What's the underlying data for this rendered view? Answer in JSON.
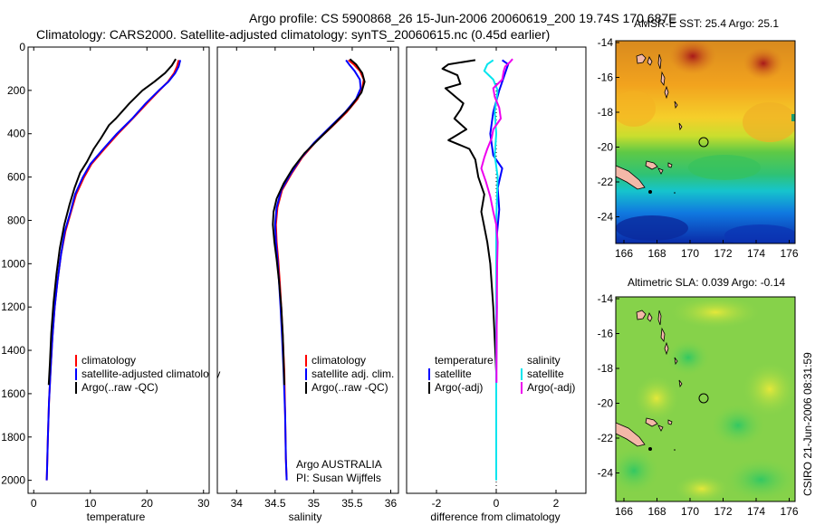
{
  "header": {
    "line1": "Argo profile: CS 5900868_26 15-Jun-2006 20060619_200 19.74S 170.687E",
    "line2": "Climatology: CARS2000. Satellite-adjusted climatology: synTS_20060615.nc (0.45d earlier)"
  },
  "colors": {
    "clim": "#ff0000",
    "sat": "#0000ff",
    "argo": "#000000",
    "sal_sat": "#00e5ee",
    "sal_argo": "#ee00ee"
  },
  "chart_data": [
    {
      "type": "line",
      "name": "temperature",
      "xlabel": "temperature",
      "xlim": [
        -1,
        31
      ],
      "ylim": [
        0,
        2060
      ],
      "xticks": [
        0,
        10,
        20,
        30
      ],
      "yticks": [
        0,
        200,
        400,
        600,
        800,
        1000,
        1200,
        1400,
        1600,
        1800,
        2000
      ],
      "legend": [
        "climatology",
        "satellite-adjusted climatology",
        "Argo(..raw -QC)"
      ],
      "series": [
        {
          "name": "climatology",
          "color": "clim",
          "points": [
            [
              25.6,
              60
            ],
            [
              25.3,
              90
            ],
            [
              24.8,
              120
            ],
            [
              23.7,
              160
            ],
            [
              22.2,
              200
            ],
            [
              20,
              260
            ],
            [
              17.5,
              330
            ],
            [
              14.9,
              400
            ],
            [
              12.5,
              470
            ],
            [
              10.2,
              540
            ],
            [
              8.9,
              600
            ],
            [
              7.5,
              680
            ],
            [
              6.6,
              760
            ],
            [
              5.6,
              850
            ],
            [
              4.8,
              960
            ],
            [
              4.2,
              1080
            ],
            [
              3.7,
              1200
            ],
            [
              3.3,
              1340
            ],
            [
              3,
              1480
            ],
            [
              2.7,
              1640
            ],
            [
              2.5,
              1800
            ],
            [
              2.35,
              1960
            ],
            [
              2.3,
              2000
            ]
          ]
        },
        {
          "name": "satellite-adjusted climatology",
          "color": "sat",
          "points": [
            [
              25.9,
              60
            ],
            [
              25.6,
              90
            ],
            [
              25,
              120
            ],
            [
              23.8,
              160
            ],
            [
              22.1,
              200
            ],
            [
              19.8,
              260
            ],
            [
              17.4,
              330
            ],
            [
              14.7,
              400
            ],
            [
              12.3,
              470
            ],
            [
              10,
              540
            ],
            [
              8.7,
              600
            ],
            [
              7.3,
              680
            ],
            [
              6.5,
              760
            ],
            [
              5.5,
              850
            ],
            [
              4.8,
              960
            ],
            [
              4.2,
              1080
            ],
            [
              3.7,
              1200
            ],
            [
              3.3,
              1340
            ],
            [
              3,
              1480
            ],
            [
              2.7,
              1640
            ],
            [
              2.5,
              1800
            ],
            [
              2.35,
              1960
            ],
            [
              2.3,
              2000
            ]
          ]
        },
        {
          "name": "Argo(..raw -QC)",
          "color": "argo",
          "points": [
            [
              25.1,
              55
            ],
            [
              24.4,
              85
            ],
            [
              23.2,
              120
            ],
            [
              21.3,
              160
            ],
            [
              19.2,
              200
            ],
            [
              16.9,
              260
            ],
            [
              14.5,
              330
            ],
            [
              13.3,
              360
            ],
            [
              11.9,
              420
            ],
            [
              10.6,
              470
            ],
            [
              9.4,
              530
            ],
            [
              8.2,
              580
            ],
            [
              7.2,
              650
            ],
            [
              6.3,
              730
            ],
            [
              5.4,
              820
            ],
            [
              4.6,
              930
            ],
            [
              4.0,
              1050
            ],
            [
              3.5,
              1180
            ],
            [
              3.1,
              1320
            ],
            [
              2.85,
              1460
            ],
            [
              2.65,
              1560
            ]
          ]
        }
      ]
    },
    {
      "type": "line",
      "name": "salinity",
      "xlabel": "salinity",
      "xlim": [
        33.75,
        36.1
      ],
      "ylim": [
        0,
        2060
      ],
      "xticks": [
        34,
        34.5,
        35,
        35.5,
        36
      ],
      "yticks": [],
      "legend": [
        "climatology",
        "satellite adj. clim.",
        "Argo(..raw -QC)"
      ],
      "series": [
        {
          "name": "climatology",
          "color": "clim",
          "points": [
            [
              35.45,
              60
            ],
            [
              35.52,
              80
            ],
            [
              35.6,
              110
            ],
            [
              35.65,
              150
            ],
            [
              35.63,
              190
            ],
            [
              35.57,
              240
            ],
            [
              35.43,
              300
            ],
            [
              35.23,
              370
            ],
            [
              35.02,
              440
            ],
            [
              34.85,
              510
            ],
            [
              34.72,
              580
            ],
            [
              34.59,
              660
            ],
            [
              34.53,
              740
            ],
            [
              34.51,
              820
            ],
            [
              34.52,
              900
            ],
            [
              34.54,
              980
            ],
            [
              34.56,
              1080
            ],
            [
              34.58,
              1200
            ],
            [
              34.6,
              1340
            ],
            [
              34.62,
              1500
            ],
            [
              34.63,
              1700
            ],
            [
              34.64,
              1900
            ],
            [
              34.65,
              2000
            ]
          ]
        },
        {
          "name": "satellite adj. clim.",
          "color": "sat",
          "points": [
            [
              35.42,
              60
            ],
            [
              35.46,
              80
            ],
            [
              35.53,
              110
            ],
            [
              35.6,
              150
            ],
            [
              35.61,
              190
            ],
            [
              35.55,
              240
            ],
            [
              35.41,
              300
            ],
            [
              35.21,
              370
            ],
            [
              35.01,
              440
            ],
            [
              34.84,
              510
            ],
            [
              34.71,
              580
            ],
            [
              34.58,
              660
            ],
            [
              34.52,
              740
            ],
            [
              34.5,
              820
            ],
            [
              34.51,
              900
            ],
            [
              34.53,
              980
            ],
            [
              34.55,
              1080
            ],
            [
              34.57,
              1200
            ],
            [
              34.59,
              1340
            ],
            [
              34.61,
              1500
            ],
            [
              34.63,
              1700
            ],
            [
              34.64,
              1900
            ],
            [
              34.65,
              2000
            ]
          ]
        },
        {
          "name": "Argo(..raw -QC)",
          "color": "argo",
          "points": [
            [
              35.47,
              55
            ],
            [
              35.55,
              80
            ],
            [
              35.63,
              120
            ],
            [
              35.66,
              160
            ],
            [
              35.62,
              210
            ],
            [
              35.47,
              280
            ],
            [
              35.28,
              350
            ],
            [
              35.08,
              420
            ],
            [
              34.88,
              490
            ],
            [
              34.73,
              560
            ],
            [
              34.61,
              630
            ],
            [
              34.52,
              700
            ],
            [
              34.48,
              760
            ],
            [
              34.47,
              820
            ],
            [
              34.49,
              900
            ],
            [
              34.52,
              980
            ],
            [
              34.55,
              1080
            ],
            [
              34.58,
              1200
            ],
            [
              34.6,
              1330
            ],
            [
              34.61,
              1450
            ],
            [
              34.62,
              1560
            ]
          ]
        }
      ],
      "annotation": [
        "Argo AUSTRALIA",
        "PI: Susan Wijffels"
      ]
    },
    {
      "type": "line",
      "name": "difference",
      "xlabel": "difference from climatology",
      "xlim": [
        -3,
        3
      ],
      "ylim": [
        0,
        2060
      ],
      "xticks": [
        -2,
        0,
        2
      ],
      "yticks": [],
      "legend": [
        "temperature",
        "satellite",
        "Argo(-adj)",
        "salinity",
        "satellite",
        "Argo(-adj)"
      ],
      "series": [
        {
          "name": "temperature satellite",
          "color": "sat",
          "points": [
            [
              0.2,
              60
            ],
            [
              0.4,
              80
            ],
            [
              0.3,
              120
            ],
            [
              0.1,
              200
            ],
            [
              -0.1,
              300
            ],
            [
              -0.2,
              400
            ],
            [
              -0.1,
              500
            ],
            [
              0.2,
              560
            ],
            [
              0.05,
              650
            ],
            [
              0.1,
              750
            ],
            [
              0,
              900
            ],
            [
              0.02,
              1200
            ],
            [
              0,
              1500
            ],
            [
              0,
              1800
            ]
          ]
        },
        {
          "name": "temperature Argo(-adj)",
          "color": "argo",
          "points": [
            [
              -0.7,
              60
            ],
            [
              -1.6,
              80
            ],
            [
              -1.8,
              100
            ],
            [
              -1.3,
              130
            ],
            [
              -1.2,
              170
            ],
            [
              -1.7,
              190
            ],
            [
              -1.1,
              260
            ],
            [
              -1.2,
              290
            ],
            [
              -1.4,
              330
            ],
            [
              -1,
              380
            ],
            [
              -1.6,
              430
            ],
            [
              -0.9,
              470
            ],
            [
              -0.7,
              520
            ],
            [
              -0.6,
              600
            ],
            [
              -0.4,
              680
            ],
            [
              -0.5,
              760
            ],
            [
              -0.4,
              830
            ],
            [
              -0.3,
              900
            ],
            [
              -0.2,
              1000
            ],
            [
              -0.1,
              1200
            ],
            [
              0,
              1500
            ],
            [
              0,
              1800
            ]
          ]
        },
        {
          "name": "salinity satellite",
          "color": "sal_sat",
          "points": [
            [
              -0.1,
              60
            ],
            [
              -0.3,
              80
            ],
            [
              -0.4,
              110
            ],
            [
              -0.1,
              150
            ],
            [
              0.05,
              200
            ],
            [
              -0.05,
              300
            ],
            [
              0,
              400
            ],
            [
              -0.05,
              500
            ],
            [
              0.05,
              600
            ],
            [
              0,
              800
            ],
            [
              0,
              1000
            ],
            [
              0,
              1500
            ],
            [
              0,
              2000
            ]
          ]
        },
        {
          "name": "salinity Argo(-adj)",
          "color": "sal_argo",
          "points": [
            [
              0.55,
              55
            ],
            [
              0.45,
              70
            ],
            [
              0.3,
              90
            ],
            [
              0.25,
              110
            ],
            [
              0.2,
              150
            ],
            [
              -0.1,
              190
            ],
            [
              -0.05,
              230
            ],
            [
              0.1,
              280
            ],
            [
              0.15,
              330
            ],
            [
              -0.1,
              380
            ],
            [
              -0.15,
              420
            ],
            [
              -0.3,
              470
            ],
            [
              -0.4,
              510
            ],
            [
              -0.5,
              560
            ],
            [
              -0.35,
              620
            ],
            [
              -0.2,
              690
            ],
            [
              -0.1,
              760
            ],
            [
              0,
              820
            ],
            [
              0.05,
              900
            ],
            [
              0.03,
              1000
            ],
            [
              0.02,
              1200
            ],
            [
              0.01,
              1400
            ],
            [
              0.01,
              1550
            ]
          ]
        }
      ]
    }
  ],
  "maps": [
    {
      "title": "AMSR-E SST: 25.4 Argo: 25.1",
      "xticks": [
        "166",
        "168",
        "170",
        "172",
        "174",
        "176"
      ],
      "yticks": [
        "-14",
        "-16",
        "-18",
        "-20",
        "-22",
        "-24"
      ],
      "kind": "sst"
    },
    {
      "title": "Altimetric SLA: 0.039 Argo: -0.14",
      "xticks": [
        "166",
        "168",
        "170",
        "172",
        "174",
        "176"
      ],
      "yticks": [
        "-14",
        "-16",
        "-18",
        "-20",
        "-22",
        "-24"
      ],
      "kind": "sla"
    }
  ],
  "footer": {
    "stamp": "CSIRO 21-Jun-2006 08:31:59"
  }
}
